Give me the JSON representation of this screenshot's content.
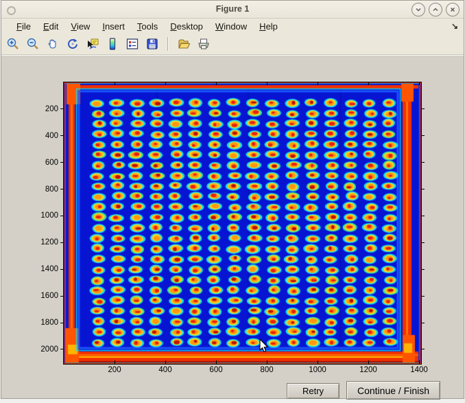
{
  "window": {
    "title": "Figure 1",
    "controls": [
      "minimize",
      "maximize",
      "close"
    ]
  },
  "menu": {
    "items": [
      {
        "first": "F",
        "rest": "ile"
      },
      {
        "first": "E",
        "rest": "dit"
      },
      {
        "first": "V",
        "rest": "iew"
      },
      {
        "first": "I",
        "rest": "nsert"
      },
      {
        "first": "T",
        "rest": "ools"
      },
      {
        "first": "D",
        "rest": "esktop"
      },
      {
        "first": "W",
        "rest": "indow"
      },
      {
        "first": "H",
        "rest": "elp"
      }
    ],
    "overflow_icon": "↘"
  },
  "toolbar": {
    "tools": [
      "zoom-in",
      "zoom-out",
      "pan",
      "rotate-3d",
      "data-cursor",
      "colorbar",
      "legend",
      "save",
      "open",
      "print"
    ]
  },
  "buttons": {
    "retry_label": "Retry",
    "continue_label": "Continue / Finish"
  },
  "chart_data": {
    "type": "heatmap",
    "title": "",
    "xlabel": "",
    "ylabel": "",
    "x_ticks": [
      200,
      400,
      600,
      800,
      1000,
      1200,
      1400
    ],
    "y_ticks": [
      200,
      400,
      600,
      800,
      1000,
      1200,
      1400,
      1600,
      1800,
      2000
    ],
    "xlim": [
      0,
      1408
    ],
    "ylim": [
      0,
      2108
    ],
    "y_direction": "reverse",
    "colormap": "jet",
    "description": "Scanned plate/microarray image: 24 rows x 16 columns of warm spots (red cores with yellow-orange bodies and cyan halos) on a deep blue field, surrounded by a red-orange plate-edge frame",
    "grid": {
      "rows": 24,
      "cols": 16,
      "x_start": 135,
      "x_step": 76.6,
      "y_start": 154,
      "y_step": 78
    },
    "colors": {
      "field": "#0715d2",
      "frame": "#f23000",
      "halo": "#17dff0",
      "halo_alt": "#35e6a0",
      "body": "#ffd21e",
      "body_inner": "#ff9612",
      "core": "#e62310",
      "core_dark": "#bc1400",
      "accent_orange": "#ff7300",
      "accent_yellow": "#ffc400",
      "edge_dark": "#a80e00"
    }
  }
}
